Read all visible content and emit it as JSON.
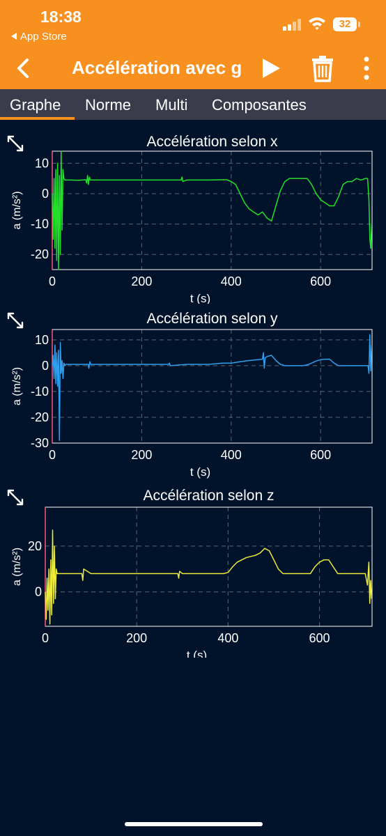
{
  "status": {
    "time": "18:38",
    "back_app": "App Store",
    "battery": "32"
  },
  "header": {
    "title": "Accélération avec g"
  },
  "tabs": [
    {
      "label": "Graphe",
      "active": true
    },
    {
      "label": "Norme"
    },
    {
      "label": "Multi"
    },
    {
      "label": "Composantes"
    }
  ],
  "icons": {
    "back": "chevron-left-icon",
    "play": "play-icon",
    "trash": "trash-icon",
    "menu": "more-vertical-icon",
    "expand": "expand-icon"
  },
  "colors": {
    "accent": "#f7901e",
    "background": "#01132a",
    "tabbar": "#3b3c4b",
    "x": "#22e02a",
    "y": "#2f9ff0",
    "z": "#ecea3a"
  },
  "chart_data": [
    {
      "type": "line",
      "title": "Accélération selon x",
      "xlabel": "t (s)",
      "ylabel": "a (m/s²)",
      "xlim": [
        0,
        715
      ],
      "ylim": [
        -25,
        14
      ],
      "xticks": [
        "0",
        "200",
        "400",
        "600"
      ],
      "yticks": [
        "10",
        "0",
        "-10",
        "-20"
      ],
      "grid": true,
      "series": [
        {
          "color": "#22e02a",
          "x": [
            0,
            2,
            4,
            6,
            8,
            10,
            12,
            14,
            16,
            18,
            20,
            22,
            24,
            26,
            28,
            30,
            40,
            60,
            75,
            77,
            79,
            81,
            83,
            85,
            100,
            150,
            200,
            250,
            288,
            290,
            292,
            300,
            350,
            380,
            390,
            400,
            410,
            420,
            430,
            440,
            450,
            460,
            470,
            480,
            490,
            500,
            510,
            520,
            530,
            540,
            550,
            560,
            570,
            580,
            590,
            600,
            610,
            620,
            630,
            640,
            650,
            660,
            670,
            680,
            690,
            700,
            705,
            708,
            710,
            712,
            714
          ],
          "y": [
            0,
            -15,
            5,
            -18,
            8,
            -22,
            10,
            -25,
            6,
            -20,
            14,
            -12,
            8,
            5,
            4.5,
            4.5,
            4.5,
            4.4,
            4.6,
            3.5,
            6,
            3,
            5.5,
            4.5,
            4.5,
            4.5,
            4.5,
            4.5,
            4.5,
            5.5,
            4,
            4.5,
            4.5,
            4.6,
            4.6,
            4,
            3,
            0,
            -3,
            -5,
            -6,
            -7,
            -6,
            -8,
            -9,
            -4,
            1,
            4,
            5,
            5,
            5,
            5,
            5,
            3,
            0,
            -2,
            -3,
            -4,
            -4,
            -1,
            3,
            4,
            4,
            5,
            4.5,
            5,
            5,
            -2,
            -15,
            -18,
            -10
          ]
        }
      ]
    },
    {
      "type": "line",
      "title": "Accélération selon y",
      "xlabel": "t (s)",
      "ylabel": "a (m/s²)",
      "xlim": [
        0,
        715
      ],
      "ylim": [
        -30,
        14
      ],
      "xticks": [
        "0",
        "200",
        "400",
        "600"
      ],
      "yticks": [
        "10",
        "0",
        "-10",
        "-20",
        "-30"
      ],
      "grid": true,
      "series": [
        {
          "color": "#2f9ff0",
          "x": [
            0,
            2,
            4,
            6,
            8,
            10,
            12,
            14,
            16,
            18,
            20,
            22,
            24,
            26,
            28,
            30,
            60,
            80,
            82,
            84,
            86,
            100,
            200,
            260,
            262,
            264,
            300,
            350,
            380,
            400,
            420,
            440,
            460,
            470,
            472,
            474,
            476,
            480,
            490,
            500,
            510,
            520,
            540,
            560,
            570,
            580,
            590,
            600,
            610,
            620,
            630,
            640,
            660,
            680,
            690,
            700,
            706,
            708,
            710,
            712,
            714
          ],
          "y": [
            0,
            4,
            -5,
            8,
            -7,
            5,
            -8,
            6,
            -29,
            9,
            -3,
            2,
            -5,
            1,
            0,
            0.5,
            0.5,
            0.5,
            -1,
            1.5,
            0.5,
            0.5,
            0.5,
            0.5,
            1,
            0,
            0.5,
            0.5,
            1,
            1,
            1.5,
            2,
            2.3,
            2.5,
            5,
            -1,
            3,
            3.5,
            4,
            2,
            0.5,
            0,
            0,
            0,
            0.3,
            1,
            1.8,
            2.3,
            2.5,
            2.5,
            1,
            0,
            0,
            0,
            0,
            0,
            0,
            -3,
            12,
            -2,
            8
          ]
        }
      ]
    },
    {
      "type": "line",
      "title": "Accélération selon z",
      "xlabel": "t (s)",
      "ylabel": "a (m/s²)",
      "xlim": [
        0,
        715
      ],
      "ylim": [
        -15,
        37
      ],
      "xticks": [
        "0",
        "200",
        "400",
        "600"
      ],
      "yticks": [
        "20",
        "0"
      ],
      "grid": true,
      "series": [
        {
          "color": "#ecea3a",
          "x": [
            0,
            2,
            4,
            6,
            8,
            10,
            12,
            14,
            16,
            18,
            20,
            22,
            24,
            26,
            28,
            30,
            60,
            80,
            82,
            84,
            100,
            200,
            290,
            292,
            294,
            300,
            380,
            390,
            400,
            410,
            420,
            430,
            440,
            450,
            460,
            470,
            480,
            490,
            500,
            510,
            520,
            530,
            540,
            560,
            580,
            590,
            600,
            610,
            620,
            630,
            640,
            660,
            680,
            700,
            705,
            708,
            710,
            712,
            714
          ],
          "y": [
            0,
            -12,
            6,
            -8,
            10,
            -14,
            14,
            -10,
            27,
            -5,
            20,
            -3,
            10,
            8,
            8,
            8,
            8,
            8,
            5,
            10,
            8,
            8,
            8,
            6,
            9,
            8,
            8,
            8,
            8.5,
            11,
            13,
            14,
            15,
            15.5,
            16,
            17,
            19,
            18,
            14,
            10,
            8,
            8,
            8,
            8,
            8,
            11,
            13,
            14,
            14,
            11,
            8,
            8,
            8,
            8,
            3,
            13,
            -5,
            5,
            -3
          ]
        }
      ]
    }
  ]
}
